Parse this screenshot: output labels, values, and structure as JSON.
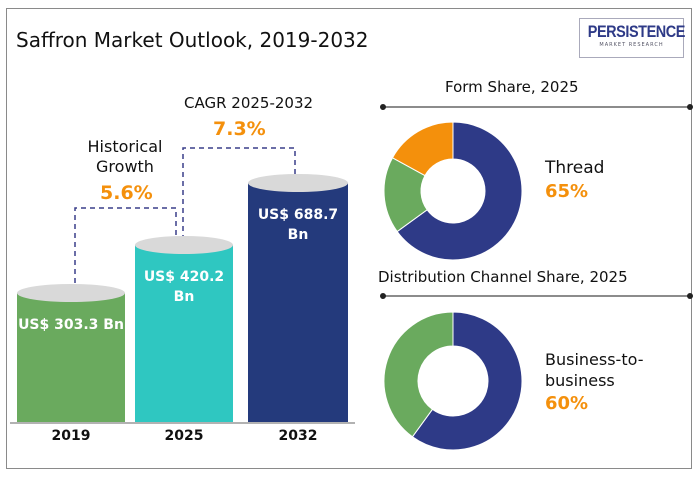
{
  "title": "Saffron Market Outlook, 2019-2032",
  "logo": {
    "name": "PERSISTENCE",
    "sub": "MARKET RESEARCH"
  },
  "chart_data": [
    {
      "type": "bar",
      "style": "cylinder",
      "categories": [
        "2019",
        "2025",
        "2032"
      ],
      "values": [
        303.3,
        420.2,
        688.7
      ],
      "labels": [
        "US$ 303.3 Bn",
        "US$ 420.2 Bn",
        "US$ 688.7 Bn"
      ],
      "colors": [
        "#6aaa5e",
        "#2fc7c1",
        "#243a7c"
      ],
      "annotations": [
        {
          "label": "Historical Growth",
          "value": "5.6%"
        },
        {
          "label": "CAGR 2025-2032",
          "value": "7.3%"
        }
      ]
    },
    {
      "type": "pie",
      "style": "donut",
      "title": "Form Share, 2025",
      "slices": [
        {
          "name": "Thread",
          "value": 65,
          "color": "#2e3a87"
        },
        {
          "value": 18,
          "color": "#6aaa5e"
        },
        {
          "value": 17,
          "color": "#f4900c"
        }
      ],
      "callout": {
        "label": "Thread",
        "value": "65%"
      }
    },
    {
      "type": "pie",
      "style": "donut",
      "title": "Distribution Channel Share, 2025",
      "slices": [
        {
          "name": "Business-to-business",
          "value": 60,
          "color": "#2e3a87"
        },
        {
          "value": 40,
          "color": "#6aaa5e"
        }
      ],
      "callout": {
        "label": "Business-to-business",
        "value": "60%"
      }
    }
  ],
  "accent": "#f4900c"
}
